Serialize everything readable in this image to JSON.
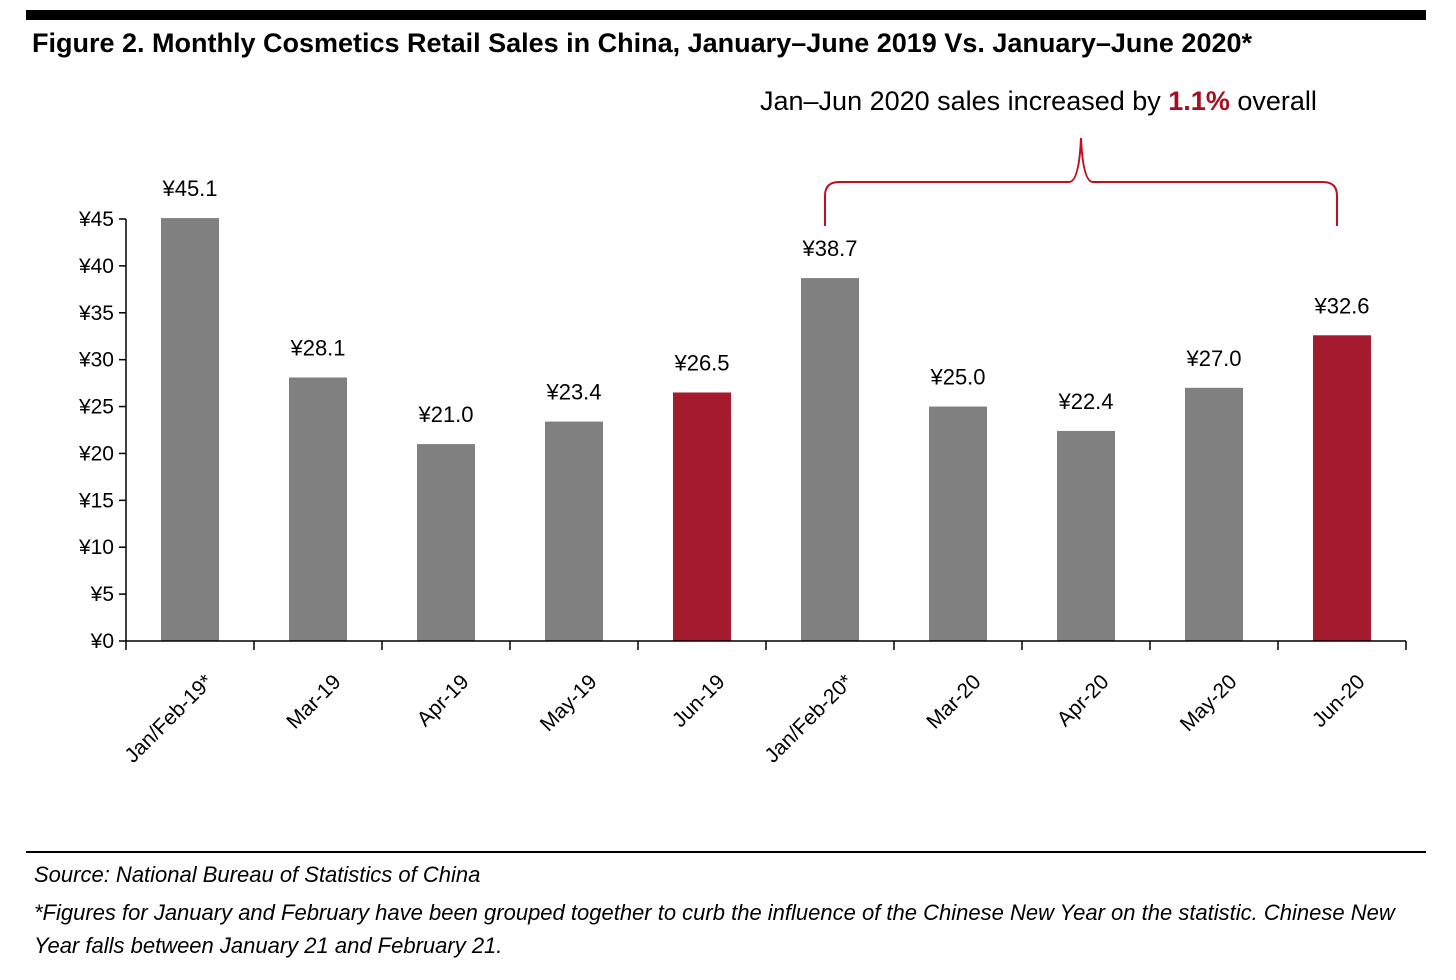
{
  "title": "Figure 2. Monthly Cosmetics Retail Sales in China, January–June 2019 Vs. January–June 2020*",
  "annotation": {
    "prefix": "Jan–Jun 2020 sales increased by ",
    "highlight": "1.1%",
    "suffix": " overall"
  },
  "source": "Source: National Bureau of Statistics of China",
  "footnote": "*Figures for January and February have been grouped together to curb the influence of the Chinese New Year on the statistic. Chinese New Year falls between January 21 and February 21.",
  "colors": {
    "bar": "#808080",
    "highlight": "#a51b2e",
    "bracket": "#c0101f",
    "axis": "#000000"
  },
  "chart_data": {
    "type": "bar",
    "title": "Figure 2. Monthly Cosmetics Retail Sales in China, January–June 2019 Vs. January–June 2020*",
    "xlabel": "",
    "ylabel": "",
    "categories": [
      "Jan/Feb-19*",
      "Mar-19",
      "Apr-19",
      "May-19",
      "Jun-19",
      "Jan/Feb-20*",
      "Mar-20",
      "Apr-20",
      "May-20",
      "Jun-20"
    ],
    "values": [
      45.1,
      28.1,
      21.0,
      23.4,
      26.5,
      38.7,
      25.0,
      22.4,
      27.0,
      32.6
    ],
    "value_labels": [
      "¥45.1",
      "¥28.1",
      "¥21.0",
      "¥23.4",
      "¥26.5",
      "¥38.7",
      "¥25.0",
      "¥22.4",
      "¥27.0",
      "¥32.6"
    ],
    "highlighted": [
      false,
      false,
      false,
      false,
      true,
      false,
      false,
      false,
      false,
      true
    ],
    "yticks": [
      0,
      5,
      10,
      15,
      20,
      25,
      30,
      35,
      40,
      45
    ],
    "ytick_labels": [
      "¥0",
      "¥5",
      "¥10",
      "¥15",
      "¥20",
      "¥25",
      "¥30",
      "¥35",
      "¥40",
      "¥45"
    ],
    "ylim": [
      0,
      45
    ],
    "grid": false,
    "legend": "none"
  }
}
